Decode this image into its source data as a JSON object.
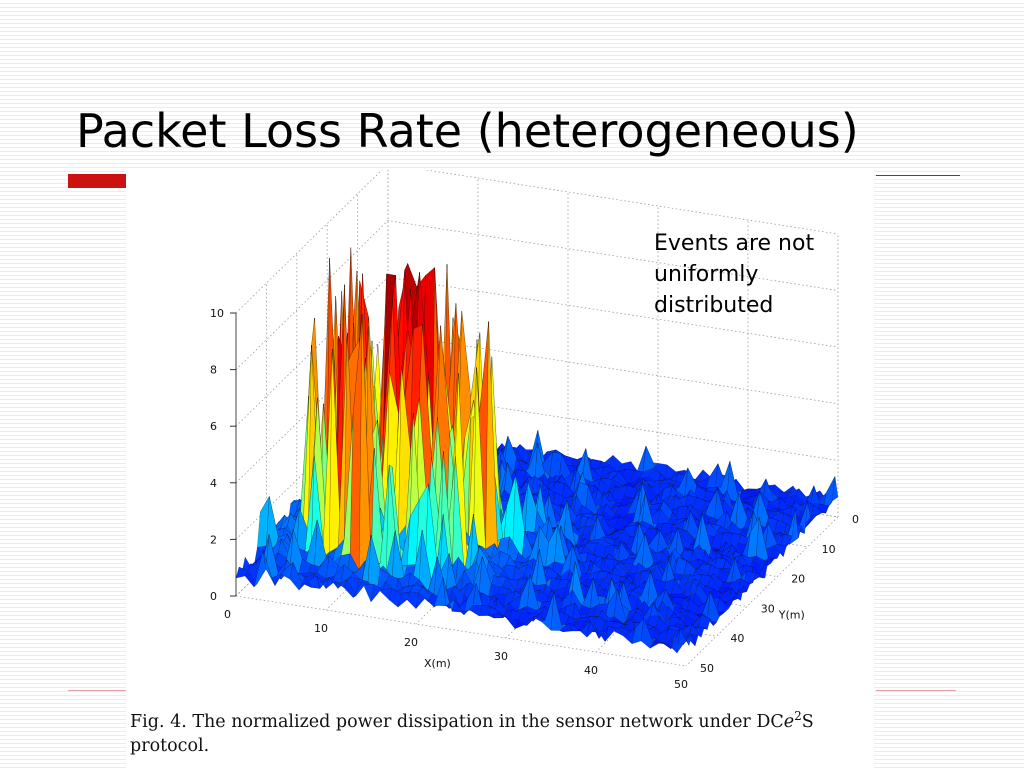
{
  "slide": {
    "title": "Packet Loss Rate (heterogeneous)",
    "annotation_line1": "Events are not",
    "annotation_line2": "uniformly distributed"
  },
  "caption": {
    "prefix": "Fig. 4.   The normalized power dissipation in the sensor network under DC",
    "italic": "e",
    "superscript": "2",
    "suffix": "S",
    "line2": "protocol."
  },
  "colors": {
    "accent_red": "#cc1111",
    "surface_low": "#0a14c8",
    "surface_high": "#a01010"
  },
  "chart_data": {
    "type": "surface3d",
    "title": "",
    "xlabel": "X(m)",
    "ylabel": "Y(m)",
    "zlabel": "",
    "xlim": [
      0,
      50
    ],
    "ylim": [
      0,
      50
    ],
    "zlim": [
      0,
      10
    ],
    "x_ticks": [
      "0",
      "10",
      "20",
      "30",
      "40",
      "50"
    ],
    "y_ticks": [
      "0",
      "10",
      "20",
      "30",
      "40",
      "50"
    ],
    "z_ticks": [
      "0",
      "2",
      "4",
      "6",
      "8",
      "10"
    ],
    "grid": true,
    "colormap": "jet",
    "description_values": {
      "peak_region_x": [
        5,
        25
      ],
      "peak_region_y": [
        20,
        45
      ],
      "max_value": 10.5,
      "background_level": 0.6
    }
  }
}
